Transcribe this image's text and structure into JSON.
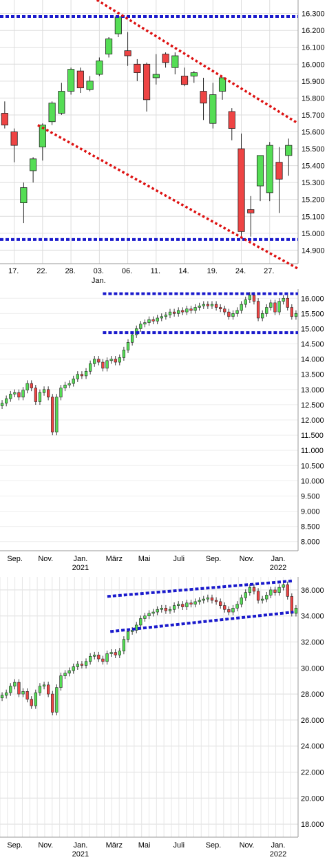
{
  "colors": {
    "up": "#55dd55",
    "down": "#ee4444",
    "wick": "#222222",
    "grid": "#dddddd",
    "support_line": "#1a1acc",
    "trend_line": "#dd1111"
  },
  "chart_data": [
    {
      "type": "candlestick",
      "ylim": [
        14.82,
        16.38
      ],
      "y_ticks": [
        16.3,
        16.2,
        16.1,
        16.0,
        15.9,
        15.8,
        15.7,
        15.6,
        15.5,
        15.4,
        15.3,
        15.2,
        15.1,
        15.0,
        14.9
      ],
      "y_tick_labels": [
        "16.300",
        "16.200",
        "16.100",
        "16.000",
        "15.900",
        "15.800",
        "15.700",
        "15.600",
        "15.500",
        "15.400",
        "15.300",
        "15.200",
        "15.100",
        "15.000",
        "14.900"
      ],
      "x_ticks": [
        {
          "i": 1,
          "label": "17."
        },
        {
          "i": 4,
          "label": "22."
        },
        {
          "i": 7,
          "label": "28."
        },
        {
          "i": 10,
          "label": "03.",
          "sub": "Jan."
        },
        {
          "i": 13,
          "label": "06."
        },
        {
          "i": 16,
          "label": "11."
        },
        {
          "i": 19,
          "label": "14."
        },
        {
          "i": 22,
          "label": "19."
        },
        {
          "i": 25,
          "label": "24."
        },
        {
          "i": 28,
          "label": "27."
        }
      ],
      "n_slots": 31.5,
      "candles": [
        {
          "o": 15.71,
          "h": 15.78,
          "l": 15.62,
          "c": 15.64
        },
        {
          "o": 15.6,
          "h": 15.62,
          "l": 15.42,
          "c": 15.52
        },
        {
          "o": 15.18,
          "h": 15.3,
          "l": 15.06,
          "c": 15.27
        },
        {
          "o": 15.37,
          "h": 15.45,
          "l": 15.3,
          "c": 15.44
        },
        {
          "o": 15.51,
          "h": 15.65,
          "l": 15.43,
          "c": 15.64
        },
        {
          "o": 15.66,
          "h": 15.78,
          "l": 15.64,
          "c": 15.77
        },
        {
          "o": 15.71,
          "h": 15.89,
          "l": 15.7,
          "c": 15.84
        },
        {
          "o": 15.84,
          "h": 15.98,
          "l": 15.82,
          "c": 15.97
        },
        {
          "o": 15.96,
          "h": 15.98,
          "l": 15.83,
          "c": 15.86
        },
        {
          "o": 15.85,
          "h": 15.93,
          "l": 15.84,
          "c": 15.9
        },
        {
          "o": 15.94,
          "h": 16.04,
          "l": 15.93,
          "c": 16.02
        },
        {
          "o": 16.06,
          "h": 16.16,
          "l": 16.04,
          "c": 16.15
        },
        {
          "o": 16.18,
          "h": 16.29,
          "l": 16.16,
          "c": 16.28
        },
        {
          "o": 16.08,
          "h": 16.19,
          "l": 15.99,
          "c": 16.05
        },
        {
          "o": 16.0,
          "h": 16.03,
          "l": 15.9,
          "c": 15.95
        },
        {
          "o": 16.0,
          "h": 16.01,
          "l": 15.72,
          "c": 15.79
        },
        {
          "o": 15.92,
          "h": 16.06,
          "l": 15.88,
          "c": 15.94
        },
        {
          "o": 16.06,
          "h": 16.07,
          "l": 15.98,
          "c": 16.01
        },
        {
          "o": 15.98,
          "h": 16.07,
          "l": 15.94,
          "c": 16.05
        },
        {
          "o": 15.93,
          "h": 15.98,
          "l": 15.87,
          "c": 15.88
        },
        {
          "o": 15.93,
          "h": 15.96,
          "l": 15.89,
          "c": 15.95
        },
        {
          "o": 15.84,
          "h": 15.92,
          "l": 15.67,
          "c": 15.77
        },
        {
          "o": 15.65,
          "h": 15.89,
          "l": 15.62,
          "c": 15.82
        },
        {
          "o": 15.84,
          "h": 15.92,
          "l": 15.79,
          "c": 15.92
        },
        {
          "o": 15.72,
          "h": 15.74,
          "l": 15.55,
          "c": 15.62
        },
        {
          "o": 15.5,
          "h": 15.59,
          "l": 14.98,
          "c": 15.01
        },
        {
          "o": 15.14,
          "h": 15.22,
          "l": 14.98,
          "c": 15.12
        },
        {
          "o": 15.28,
          "h": 15.46,
          "l": 15.19,
          "c": 15.46
        },
        {
          "o": 15.24,
          "h": 15.54,
          "l": 15.19,
          "c": 15.52
        },
        {
          "o": 15.42,
          "h": 15.51,
          "l": 15.12,
          "c": 15.32
        },
        {
          "o": 15.46,
          "h": 15.56,
          "l": 15.34,
          "c": 15.52
        }
      ],
      "hlines": [
        16.282,
        14.963
      ],
      "trendlines": [
        {
          "x1": 8.5,
          "y1": 16.44,
          "x2": 31.5,
          "y2": 15.65
        },
        {
          "x1": 4.0,
          "y1": 15.64,
          "x2": 31.5,
          "y2": 14.79
        }
      ]
    },
    {
      "type": "candlestick",
      "ylim": [
        7.7,
        16.3
      ],
      "y_ticks": [
        16.0,
        15.5,
        15.0,
        14.5,
        14.0,
        13.5,
        13.0,
        12.5,
        12.0,
        11.5,
        11.0,
        10.5,
        10.0,
        9.5,
        9.0,
        8.5,
        8.0
      ],
      "y_tick_labels": [
        "16.000",
        "15.500",
        "15.000",
        "14.500",
        "14.000",
        "13.500",
        "13.000",
        "12.500",
        "12.000",
        "11.500",
        "11.000",
        "10.500",
        "10.000",
        "9.500",
        "9.000",
        "8.500",
        "8.000"
      ],
      "x_ticks": [
        {
          "label": "Sep.",
          "t": 0.05
        },
        {
          "label": "Nov.",
          "t": 0.153
        },
        {
          "label": "Jan.",
          "sub": "2021",
          "t": 0.27
        },
        {
          "label": "März",
          "t": 0.383
        },
        {
          "label": "Mai",
          "t": 0.484
        },
        {
          "label": "Juli",
          "t": 0.6
        },
        {
          "label": "Sep.",
          "t": 0.716
        },
        {
          "label": "Nov.",
          "t": 0.828
        },
        {
          "label": "Jan.",
          "sub": "2022",
          "t": 0.933
        }
      ],
      "weekly_closes": [
        12.55,
        12.7,
        12.85,
        12.9,
        12.75,
        12.98,
        13.2,
        13.05,
        12.6,
        12.9,
        13.0,
        12.75,
        11.6,
        12.75,
        13.05,
        13.15,
        13.2,
        13.35,
        13.5,
        13.45,
        13.6,
        13.85,
        14.0,
        13.9,
        13.7,
        13.95,
        14.0,
        13.9,
        14.05,
        14.3,
        14.55,
        14.8,
        15.0,
        15.15,
        15.2,
        15.3,
        15.25,
        15.35,
        15.4,
        15.45,
        15.55,
        15.5,
        15.6,
        15.55,
        15.65,
        15.6,
        15.7,
        15.75,
        15.8,
        15.75,
        15.8,
        15.7,
        15.65,
        15.55,
        15.4,
        15.5,
        15.6,
        15.8,
        15.95,
        16.1,
        15.9,
        15.35,
        15.5,
        15.7,
        15.85,
        15.55,
        15.9,
        16.0,
        15.7,
        15.4,
        15.5
      ],
      "hlines": [
        16.15,
        14.87
      ],
      "hline_x_start": 0.345
    },
    {
      "type": "candlestick",
      "ylim": [
        17.0,
        37.0
      ],
      "y_ticks": [
        36.0,
        34.0,
        32.0,
        30.0,
        28.0,
        26.0,
        24.0,
        22.0,
        20.0,
        18.0
      ],
      "y_tick_labels": [
        "36.000",
        "34.000",
        "32.000",
        "30.000",
        "28.000",
        "26.000",
        "24.000",
        "22.000",
        "20.000",
        "18.000"
      ],
      "x_ticks": [
        {
          "label": "Sep.",
          "t": 0.05
        },
        {
          "label": "Nov.",
          "t": 0.153
        },
        {
          "label": "Jan.",
          "sub": "2021",
          "t": 0.27
        },
        {
          "label": "März",
          "t": 0.383
        },
        {
          "label": "Mai",
          "t": 0.484
        },
        {
          "label": "Juli",
          "t": 0.6
        },
        {
          "label": "Sep.",
          "t": 0.716
        },
        {
          "label": "Nov.",
          "t": 0.828
        },
        {
          "label": "Jan.",
          "sub": "2022",
          "t": 0.933
        }
      ],
      "weekly_closes": [
        27.9,
        28.1,
        28.6,
        28.9,
        28.0,
        28.2,
        27.6,
        27.1,
        28.1,
        28.6,
        28.7,
        28.0,
        26.6,
        28.5,
        29.4,
        29.6,
        29.8,
        30.1,
        30.3,
        30.2,
        30.5,
        30.9,
        31.0,
        30.7,
        30.5,
        31.1,
        31.2,
        31.0,
        31.3,
        32.2,
        32.8,
        32.9,
        33.3,
        33.8,
        34.0,
        34.2,
        34.3,
        34.5,
        34.6,
        34.4,
        34.5,
        34.8,
        34.9,
        34.7,
        35.0,
        34.9,
        35.1,
        35.2,
        35.3,
        35.4,
        35.2,
        35.1,
        34.8,
        34.5,
        34.3,
        34.6,
        34.9,
        35.4,
        35.8,
        36.2,
        35.9,
        35.2,
        35.3,
        35.6,
        36.0,
        35.8,
        36.2,
        36.4,
        35.5,
        34.2,
        34.6
      ],
      "trendlines": [
        {
          "t1": 0.36,
          "y1": 35.5,
          "t2": 0.985,
          "y2": 36.7
        },
        {
          "t1": 0.37,
          "y1": 32.8,
          "t2": 0.985,
          "y2": 34.3
        }
      ]
    }
  ]
}
